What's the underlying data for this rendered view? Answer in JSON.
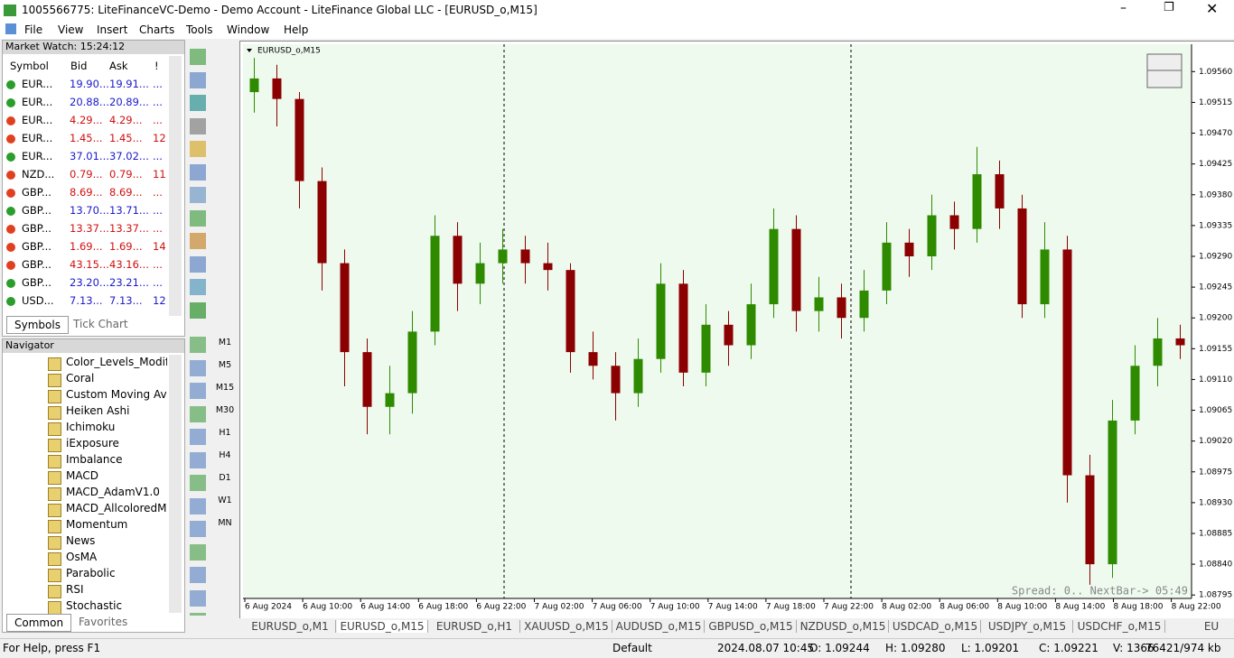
{
  "window": {
    "title": "1005566775: LiteFinanceVC-Demo - Demo Account - LiteFinance Global LLC - [EURUSD_o,M15]"
  },
  "menu": [
    "File",
    "View",
    "Insert",
    "Charts",
    "Tools",
    "Window",
    "Help"
  ],
  "market_watch": {
    "title": "Market Watch: 15:24:12",
    "columns": [
      "Symbol",
      "Bid",
      "Ask",
      "!"
    ],
    "rows": [
      {
        "symbol": "EUR...",
        "bid": "19.90...",
        "ask": "19.91...",
        "spread": "...",
        "dir": "up"
      },
      {
        "symbol": "EUR...",
        "bid": "20.88...",
        "ask": "20.89...",
        "spread": "...",
        "dir": "up"
      },
      {
        "symbol": "EUR...",
        "bid": "4.29...",
        "ask": "4.29...",
        "spread": "...",
        "dir": "down"
      },
      {
        "symbol": "EUR...",
        "bid": "1.45...",
        "ask": "1.45...",
        "spread": "12",
        "dir": "down"
      },
      {
        "symbol": "EUR...",
        "bid": "37.01...",
        "ask": "37.02...",
        "spread": "...",
        "dir": "up"
      },
      {
        "symbol": "NZD...",
        "bid": "0.79...",
        "ask": "0.79...",
        "spread": "11",
        "dir": "down"
      },
      {
        "symbol": "GBP...",
        "bid": "8.69...",
        "ask": "8.69...",
        "spread": "...",
        "dir": "down"
      },
      {
        "symbol": "GBP...",
        "bid": "13.70...",
        "ask": "13.71...",
        "spread": "...",
        "dir": "up"
      },
      {
        "symbol": "GBP...",
        "bid": "13.37...",
        "ask": "13.37...",
        "spread": "...",
        "dir": "down"
      },
      {
        "symbol": "GBP...",
        "bid": "1.69...",
        "ask": "1.69...",
        "spread": "14",
        "dir": "down"
      },
      {
        "symbol": "GBP...",
        "bid": "43.15...",
        "ask": "43.16...",
        "spread": "...",
        "dir": "down"
      },
      {
        "symbol": "GBP...",
        "bid": "23.20...",
        "ask": "23.21...",
        "spread": "...",
        "dir": "up"
      },
      {
        "symbol": "USD...",
        "bid": "7.13...",
        "ask": "7.13...",
        "spread": "12",
        "dir": "up"
      }
    ],
    "tabs": [
      "Symbols",
      "Tick Chart"
    ]
  },
  "navigator": {
    "title": "Navigator",
    "items": [
      "Color_Levels_Modifie",
      "Coral",
      "Custom Moving Ave",
      "Heiken Ashi",
      "Ichimoku",
      "iExposure",
      "Imbalance",
      "MACD",
      "MACD_AdamV1.0",
      "MACD_AllcoloredMM",
      "Momentum",
      "News",
      "OsMA",
      "Parabolic",
      "RSI",
      "Stochastic"
    ],
    "tabs": [
      "Common",
      "Favorites"
    ]
  },
  "timeframes": [
    "M1",
    "M5",
    "M15",
    "M30",
    "H1",
    "H4",
    "D1",
    "W1",
    "MN"
  ],
  "chart_data": {
    "type": "candlestick",
    "title": "EURUSD_o,M15",
    "ylim": [
      1.0879,
      1.096
    ],
    "yticks": [
      {
        "value": 1.0956,
        "label": "1.09560"
      },
      1.09515,
      {
        "value": 1.0947,
        "label": "1.09470"
      },
      1.09425,
      {
        "value": 1.0938,
        "label": "1.09380"
      },
      1.09335,
      {
        "value": 1.0929,
        "label": "1.09290"
      },
      1.09245,
      {
        "value": 1.092,
        "label": "1.09200"
      },
      1.09155,
      {
        "value": 1.0911,
        "label": "1.09110"
      },
      1.09065,
      {
        "value": 1.0902,
        "label": "1.09020"
      },
      1.08975,
      {
        "value": 1.0893,
        "label": "1.08930"
      },
      1.08885,
      {
        "value": 1.0884,
        "label": "1.08840"
      },
      1.08795
    ],
    "categories": [
      "6 Aug 2024",
      "6 Aug 10:00",
      "6 Aug 14:00",
      "6 Aug 18:00",
      "6 Aug 22:00",
      "7 Aug 02:00",
      "7 Aug 06:00",
      "7 Aug 10:00",
      "7 Aug 14:00",
      "7 Aug 18:00",
      "7 Aug 22:00",
      "8 Aug 02:00",
      "8 Aug 06:00",
      "8 Aug 10:00",
      "8 Aug 14:00",
      "8 Aug 18:00",
      "8 Aug 22:00"
    ],
    "up_color": "#2e8b00",
    "down_color": "#8b0000",
    "background": "#effaef",
    "candles": [
      [
        1.0953,
        1.0958,
        1.095,
        1.0955
      ],
      [
        1.0955,
        1.0957,
        1.0948,
        1.0952
      ],
      [
        1.0952,
        1.0953,
        1.0936,
        1.094
      ],
      [
        1.094,
        1.0942,
        1.0924,
        1.0928
      ],
      [
        1.0928,
        1.093,
        1.091,
        1.0915
      ],
      [
        1.0915,
        1.0917,
        1.0903,
        1.0907
      ],
      [
        1.0907,
        1.0913,
        1.0903,
        1.0909
      ],
      [
        1.0909,
        1.0921,
        1.0906,
        1.0918
      ],
      [
        1.0918,
        1.0935,
        1.0916,
        1.0932
      ],
      [
        1.0932,
        1.0934,
        1.0921,
        1.0925
      ],
      [
        1.0925,
        1.0931,
        1.0922,
        1.0928
      ],
      [
        1.0928,
        1.0933,
        1.0925,
        1.093
      ],
      [
        1.093,
        1.0932,
        1.0925,
        1.0928
      ],
      [
        1.0928,
        1.0931,
        1.0924,
        1.0927
      ],
      [
        1.0927,
        1.0928,
        1.0912,
        1.0915
      ],
      [
        1.0915,
        1.0918,
        1.0911,
        1.0913
      ],
      [
        1.0913,
        1.0915,
        1.0905,
        1.0909
      ],
      [
        1.0909,
        1.0917,
        1.0907,
        1.0914
      ],
      [
        1.0914,
        1.0928,
        1.0912,
        1.0925
      ],
      [
        1.0925,
        1.0927,
        1.091,
        1.0912
      ],
      [
        1.0912,
        1.0922,
        1.091,
        1.0919
      ],
      [
        1.0919,
        1.0921,
        1.0913,
        1.0916
      ],
      [
        1.0916,
        1.0925,
        1.0914,
        1.0922
      ],
      [
        1.0922,
        1.0936,
        1.092,
        1.0933
      ],
      [
        1.0933,
        1.0935,
        1.0918,
        1.0921
      ],
      [
        1.0921,
        1.0926,
        1.0918,
        1.0923
      ],
      [
        1.0923,
        1.0925,
        1.0917,
        1.092
      ],
      [
        1.092,
        1.0927,
        1.0918,
        1.0924
      ],
      [
        1.0924,
        1.0934,
        1.0922,
        1.0931
      ],
      [
        1.0931,
        1.0933,
        1.0926,
        1.0929
      ],
      [
        1.0929,
        1.0938,
        1.0927,
        1.0935
      ],
      [
        1.0935,
        1.0937,
        1.093,
        1.0933
      ],
      [
        1.0933,
        1.0945,
        1.0931,
        1.0941
      ],
      [
        1.0941,
        1.0943,
        1.0933,
        1.0936
      ],
      [
        1.0936,
        1.0938,
        1.092,
        1.0922
      ],
      [
        1.0922,
        1.0934,
        1.092,
        1.093
      ],
      [
        1.093,
        1.0932,
        1.0893,
        1.0897
      ],
      [
        1.0897,
        1.09,
        1.0881,
        1.0884
      ],
      [
        1.0884,
        1.0908,
        1.0882,
        1.0905
      ],
      [
        1.0905,
        1.0916,
        1.0903,
        1.0913
      ],
      [
        1.0913,
        1.092,
        1.091,
        1.0917
      ],
      [
        1.0917,
        1.0919,
        1.0914,
        1.0916
      ]
    ],
    "annotation": "Spread: 0.. NextBar-> 05:49"
  },
  "chart_tabs": [
    "EURUSD_o,M1",
    "EURUSD_o,M15",
    "EURUSD_o,H1",
    "XAUUSD_o,M15",
    "AUDUSD_o,M15",
    "GBPUSD_o,M15",
    "NZDUSD_o,M15",
    "USDCAD_o,M15",
    "USDJPY_o,M15",
    "USDCHF_o,M15",
    "EU"
  ],
  "status": {
    "help": "For Help, press F1",
    "profile": "Default",
    "time": "2024.08.07 10:45",
    "open": "O: 1.09244",
    "high": "H: 1.09280",
    "low": "L: 1.09201",
    "close": "C: 1.09221",
    "volume": "V: 1366",
    "traffic": "76421/974 kb"
  }
}
